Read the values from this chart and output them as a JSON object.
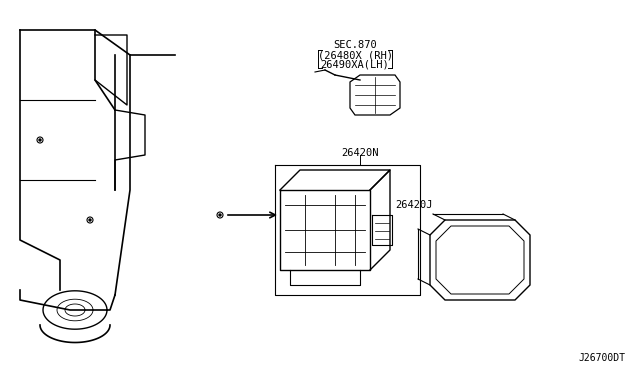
{
  "title": "",
  "background_color": "#ffffff",
  "line_color": "#000000",
  "text_color": "#000000",
  "diagram_id": "J26700DT",
  "labels": {
    "sec870": "SEC.870",
    "part1_rh": "(26480X (RH)",
    "part1_lh": "26490XA(LH)",
    "part2n": "26420N",
    "part2j": "26420J"
  },
  "figsize": [
    6.4,
    3.72
  ],
  "dpi": 100
}
